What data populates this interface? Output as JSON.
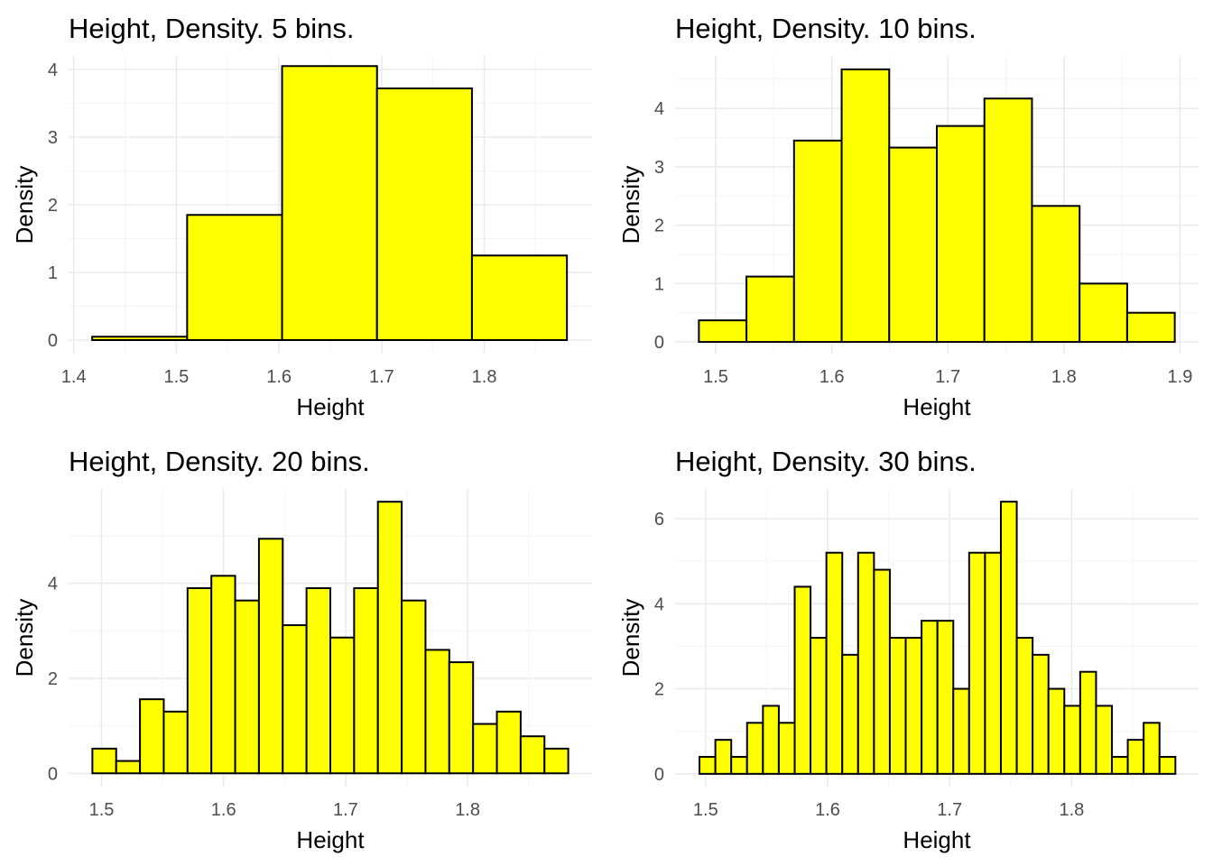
{
  "chart_data": [
    {
      "type": "bar",
      "title": "Height, Density. 5 bins.",
      "xlabel": "Height",
      "ylabel": "Density",
      "bar_color": "#FFFF00",
      "edge_color": "#000000",
      "bin_edges": [
        1.418,
        1.5105,
        1.603,
        1.6955,
        1.788,
        1.8805
      ],
      "values": [
        0.05,
        1.85,
        4.05,
        3.72,
        1.25
      ],
      "xlim": [
        1.395,
        1.905
      ],
      "ylim": [
        -0.2,
        4.2
      ],
      "xticks": [
        1.4,
        1.5,
        1.6,
        1.7,
        1.8
      ],
      "xtick_labels": [
        "1.4",
        "1.5",
        "1.6",
        "1.7",
        "1.8"
      ],
      "yticks": [
        0,
        1,
        2,
        3,
        4
      ],
      "ytick_labels": [
        "0",
        "1",
        "2",
        "3",
        "4"
      ]
    },
    {
      "type": "bar",
      "title": "Height, Density. 10 bins.",
      "xlabel": "Height",
      "ylabel": "Density",
      "bar_color": "#FFFF00",
      "edge_color": "#000000",
      "bin_edges": [
        1.4855,
        1.5265,
        1.5675,
        1.6085,
        1.6495,
        1.6905,
        1.7315,
        1.7725,
        1.8135,
        1.8545,
        1.8955
      ],
      "values": [
        0.37,
        1.12,
        3.45,
        4.67,
        3.33,
        3.7,
        4.17,
        2.33,
        1.0,
        0.5
      ],
      "xlim": [
        1.465,
        1.916
      ],
      "ylim": [
        -0.2,
        4.9
      ],
      "xticks": [
        1.5,
        1.6,
        1.7,
        1.8,
        1.9
      ],
      "xtick_labels": [
        "1.5",
        "1.6",
        "1.7",
        "1.8",
        "1.9"
      ],
      "yticks": [
        0,
        1,
        2,
        3,
        4
      ],
      "ytick_labels": [
        "0",
        "1",
        "2",
        "3",
        "4"
      ]
    },
    {
      "type": "bar",
      "title": "Height, Density. 20 bins.",
      "xlabel": "Height",
      "ylabel": "Density",
      "bar_color": "#FFFF00",
      "edge_color": "#000000",
      "bin_edges": [
        1.4925,
        1.512,
        1.5315,
        1.551,
        1.5705,
        1.59,
        1.6095,
        1.629,
        1.6485,
        1.668,
        1.6875,
        1.707,
        1.7265,
        1.746,
        1.7655,
        1.785,
        1.8045,
        1.824,
        1.8435,
        1.863,
        1.8825
      ],
      "values": [
        0.52,
        0.26,
        1.56,
        1.3,
        3.9,
        4.16,
        3.64,
        4.94,
        3.12,
        3.9,
        2.86,
        3.9,
        5.72,
        3.64,
        2.6,
        2.34,
        1.04,
        1.3,
        0.78,
        0.52
      ],
      "xlim": [
        1.473,
        1.902
      ],
      "ylim": [
        -0.28,
        5.99
      ],
      "xticks": [
        1.5,
        1.6,
        1.7,
        1.8
      ],
      "xtick_labels": [
        "1.5",
        "1.6",
        "1.7",
        "1.8"
      ],
      "yticks": [
        0,
        2,
        4
      ],
      "ytick_labels": [
        "0",
        "2",
        "4"
      ]
    },
    {
      "type": "bar",
      "title": "Height, Density. 30 bins.",
      "xlabel": "Height",
      "ylabel": "Density",
      "bar_color": "#FFFF00",
      "edge_color": "#000000",
      "bin_edges": [
        1.495,
        1.508,
        1.521,
        1.534,
        1.547,
        1.56,
        1.573,
        1.586,
        1.599,
        1.612,
        1.625,
        1.638,
        1.651,
        1.664,
        1.677,
        1.69,
        1.703,
        1.716,
        1.729,
        1.742,
        1.755,
        1.768,
        1.781,
        1.794,
        1.807,
        1.82,
        1.833,
        1.846,
        1.859,
        1.872,
        1.885
      ],
      "values": [
        0.4,
        0.8,
        0.4,
        1.2,
        1.6,
        1.2,
        4.4,
        3.2,
        5.2,
        2.8,
        5.2,
        4.8,
        3.2,
        3.2,
        3.6,
        3.6,
        2.0,
        5.2,
        5.2,
        6.4,
        3.2,
        2.8,
        2.0,
        1.6,
        2.4,
        1.6,
        0.4,
        0.8,
        1.2,
        0.4
      ],
      "xlim": [
        1.475,
        1.904
      ],
      "ylim": [
        -0.3,
        6.7
      ],
      "xticks": [
        1.5,
        1.6,
        1.7,
        1.8
      ],
      "xtick_labels": [
        "1.5",
        "1.6",
        "1.7",
        "1.8"
      ],
      "yticks": [
        0,
        2,
        4,
        6
      ],
      "ytick_labels": [
        "0",
        "2",
        "4",
        "6"
      ]
    }
  ]
}
